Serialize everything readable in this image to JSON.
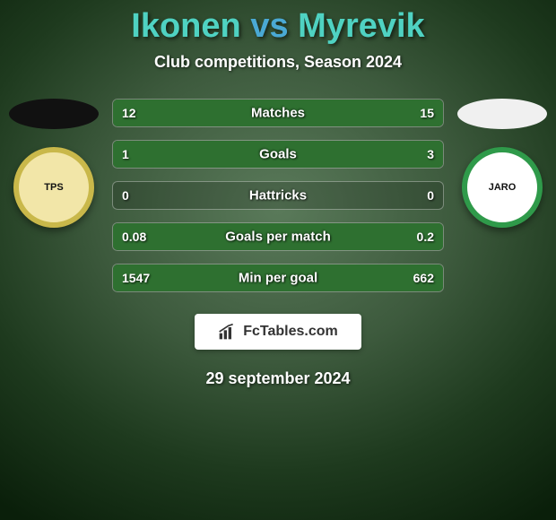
{
  "header": {
    "title_left": "Ikonen",
    "title_vs": "vs",
    "title_right": "Myrevik",
    "title_color_left": "#4fd2c2",
    "title_color_vs": "#4aa9d4",
    "title_color_right": "#4fd2c2",
    "subtitle": "Club competitions, Season 2024"
  },
  "players": {
    "left": {
      "head_bg": "#111111",
      "club_bg": "#f2e6a8",
      "club_border": "#c9b84a",
      "club_inner": "#111111",
      "club_label": "TPS"
    },
    "right": {
      "head_bg": "#f0f0f0",
      "club_bg": "#ffffff",
      "club_border": "#2f9a4a",
      "club_inner": "#111111",
      "club_label": "JARO"
    }
  },
  "bars": {
    "fill_color_left": "#2e7030",
    "fill_color_right": "#2e7030",
    "rows": [
      {
        "label": "Matches",
        "left": "12",
        "right": "15",
        "left_pct": 44,
        "right_pct": 56
      },
      {
        "label": "Goals",
        "left": "1",
        "right": "3",
        "left_pct": 25,
        "right_pct": 75
      },
      {
        "label": "Hattricks",
        "left": "0",
        "right": "0",
        "left_pct": 0,
        "right_pct": 0
      },
      {
        "label": "Goals per match",
        "left": "0.08",
        "right": "0.2",
        "left_pct": 29,
        "right_pct": 71
      },
      {
        "label": "Min per goal",
        "left": "1547",
        "right": "662",
        "left_pct": 70,
        "right_pct": 30
      }
    ]
  },
  "footer": {
    "brand": "FcTables.com",
    "date": "29 september 2024"
  }
}
